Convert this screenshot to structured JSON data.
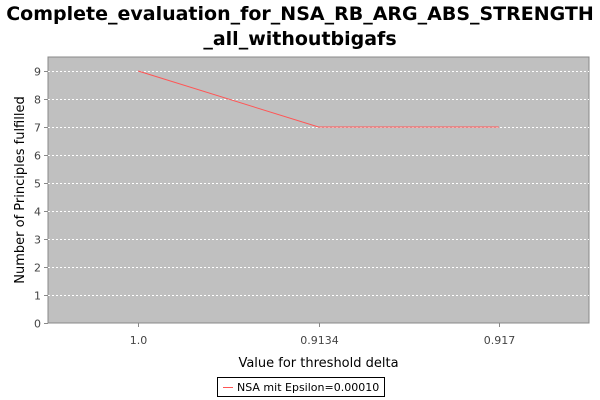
{
  "chart_data": {
    "type": "line",
    "title": "Complete_evaluation_for_NSA_RB_ARG_ABS_STRENGTH_all_withoutbigafs",
    "title_lines": [
      "Complete_evaluation_for_NSA_RB_ARG_ABS_STRENGTH",
      "_all_withoutbigafs"
    ],
    "xlabel": "Value for threshold delta",
    "ylabel": "Number of Principles fulfilled",
    "categories": [
      "1.0",
      "0.9134",
      "0.917"
    ],
    "series": [
      {
        "name": "NSA mit Epsilon=0.00010",
        "values": [
          9,
          7,
          7
        ],
        "color": "#ff5555"
      }
    ],
    "ylim": [
      0,
      9.5
    ],
    "yticks": [
      0,
      1,
      2,
      3,
      4,
      5,
      6,
      7,
      8,
      9
    ],
    "grid": true,
    "legend_position": "bottom-center",
    "plot_background": "#c0c0c0",
    "gridline_color": "#ffffff"
  }
}
